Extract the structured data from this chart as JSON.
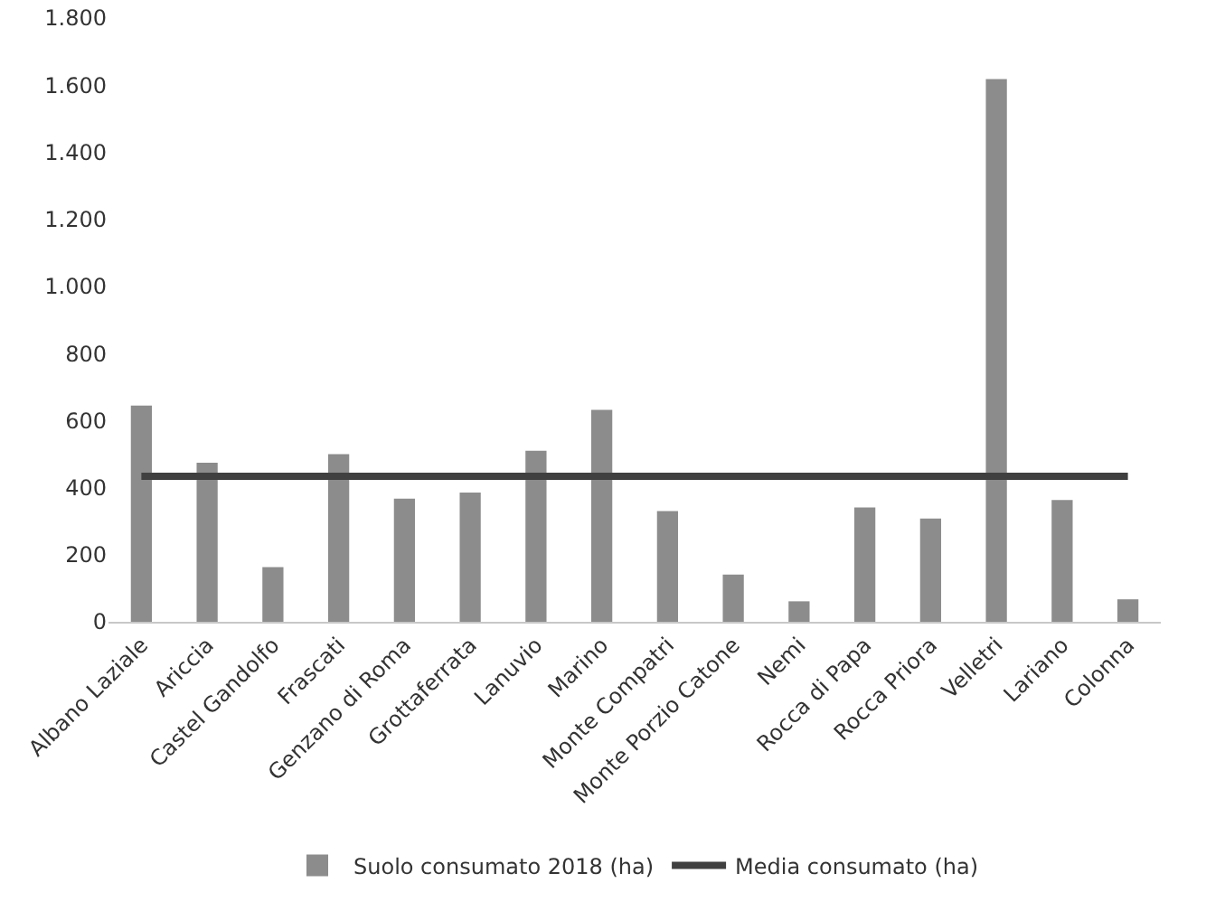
{
  "chart_data": {
    "type": "bar",
    "categories": [
      "Albano Laziale",
      "Ariccia",
      "Castel Gandolfo",
      "Frascati",
      "Genzano di Roma",
      "Grottaferrata",
      "Lanuvio",
      "Marino",
      "Monte Compatri",
      "Monte Porzio Catone",
      "Nemi",
      "Rocca di Papa",
      "Rocca Priora",
      "Velletri",
      "Lariano",
      "Colonna"
    ],
    "series": [
      {
        "name": "Suolo consumato 2018 (ha)",
        "color": "#8c8c8c",
        "values": [
          645,
          474,
          163,
          500,
          367,
          385,
          510,
          632,
          330,
          141,
          61,
          341,
          308,
          1618,
          363,
          67
        ]
      },
      {
        "name": "Media consumato (ha)",
        "type": "line",
        "color": "#404040",
        "values": [
          434,
          434,
          434,
          434,
          434,
          434,
          434,
          434,
          434,
          434,
          434,
          434,
          434,
          434,
          434,
          434
        ]
      }
    ],
    "ylim": [
      0,
      1800
    ],
    "yticks": [
      {
        "value": 0,
        "label": "0"
      },
      {
        "value": 200,
        "label": "200"
      },
      {
        "value": 400,
        "label": "400"
      },
      {
        "value": 600,
        "label": "600"
      },
      {
        "value": 800,
        "label": "800"
      },
      {
        "value": 1000,
        "label": "1.000"
      },
      {
        "value": 1200,
        "label": "1.200"
      },
      {
        "value": 1400,
        "label": "1.400"
      },
      {
        "value": 1600,
        "label": "1.600"
      },
      {
        "value": 1800,
        "label": "1.800"
      }
    ],
    "grid": false,
    "legend": "bottom",
    "marker": "none",
    "line_style": "solid"
  }
}
